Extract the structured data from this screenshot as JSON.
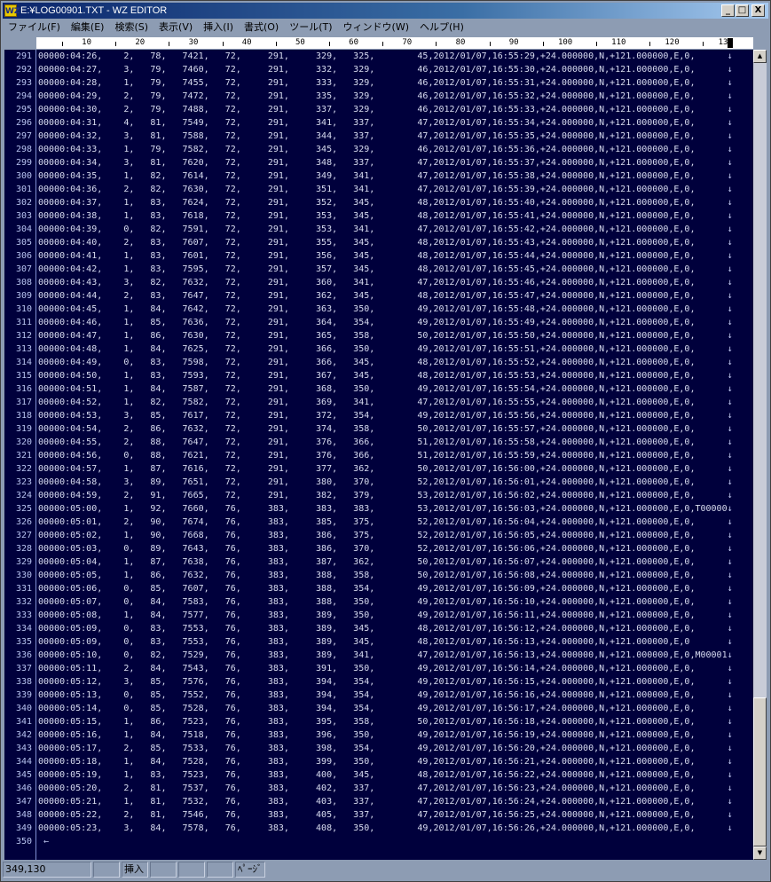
{
  "window": {
    "title": "E:¥LOG00901.TXT - WZ EDITOR",
    "app_icon": "WZ",
    "buttons": {
      "minimize": "_",
      "maximize": "□",
      "close": "X"
    }
  },
  "menu": [
    "ファイル(F)",
    "編集(E)",
    "検索(S)",
    "表示(V)",
    "挿入(I)",
    "書式(O)",
    "ツール(T)",
    "ウィンドウ(W)",
    "ヘルプ(H)"
  ],
  "ruler": {
    "labels": [
      "10",
      "20",
      "30",
      "40",
      "50",
      "60",
      "70",
      "80",
      "90",
      "100",
      "110",
      "120",
      "130"
    ],
    "cursor_column": 130
  },
  "editor": {
    "eol_marker": "↓",
    "eof_marker": "←",
    "lines": [
      {
        "n": "291",
        "f": [
          "00000:04:26,",
          "2,",
          "78,",
          "7421,",
          "72,",
          "291,",
          "329,",
          "325,",
          "45,2012/01/07,16:55:29,+24.000000,N,+121.000000,E,0,"
        ]
      },
      {
        "n": "292",
        "f": [
          "00000:04:27,",
          "3,",
          "79,",
          "7460,",
          "72,",
          "291,",
          "332,",
          "329,",
          "46,2012/01/07,16:55:30,+24.000000,N,+121.000000,E,0,"
        ]
      },
      {
        "n": "293",
        "f": [
          "00000:04:28,",
          "1,",
          "79,",
          "7455,",
          "72,",
          "291,",
          "333,",
          "329,",
          "46,2012/01/07,16:55:31,+24.000000,N,+121.000000,E,0,"
        ]
      },
      {
        "n": "294",
        "f": [
          "00000:04:29,",
          "2,",
          "79,",
          "7472,",
          "72,",
          "291,",
          "335,",
          "329,",
          "46,2012/01/07,16:55:32,+24.000000,N,+121.000000,E,0,"
        ]
      },
      {
        "n": "295",
        "f": [
          "00000:04:30,",
          "2,",
          "79,",
          "7488,",
          "72,",
          "291,",
          "337,",
          "329,",
          "46,2012/01/07,16:55:33,+24.000000,N,+121.000000,E,0,"
        ]
      },
      {
        "n": "296",
        "f": [
          "00000:04:31,",
          "4,",
          "81,",
          "7549,",
          "72,",
          "291,",
          "341,",
          "337,",
          "47,2012/01/07,16:55:34,+24.000000,N,+121.000000,E,0,"
        ]
      },
      {
        "n": "297",
        "f": [
          "00000:04:32,",
          "3,",
          "81,",
          "7588,",
          "72,",
          "291,",
          "344,",
          "337,",
          "47,2012/01/07,16:55:35,+24.000000,N,+121.000000,E,0,"
        ]
      },
      {
        "n": "298",
        "f": [
          "00000:04:33,",
          "1,",
          "79,",
          "7582,",
          "72,",
          "291,",
          "345,",
          "329,",
          "46,2012/01/07,16:55:36,+24.000000,N,+121.000000,E,0,"
        ]
      },
      {
        "n": "299",
        "f": [
          "00000:04:34,",
          "3,",
          "81,",
          "7620,",
          "72,",
          "291,",
          "348,",
          "337,",
          "47,2012/01/07,16:55:37,+24.000000,N,+121.000000,E,0,"
        ]
      },
      {
        "n": "300",
        "f": [
          "00000:04:35,",
          "1,",
          "82,",
          "7614,",
          "72,",
          "291,",
          "349,",
          "341,",
          "47,2012/01/07,16:55:38,+24.000000,N,+121.000000,E,0,"
        ]
      },
      {
        "n": "301",
        "f": [
          "00000:04:36,",
          "2,",
          "82,",
          "7630,",
          "72,",
          "291,",
          "351,",
          "341,",
          "47,2012/01/07,16:55:39,+24.000000,N,+121.000000,E,0,"
        ]
      },
      {
        "n": "302",
        "f": [
          "00000:04:37,",
          "1,",
          "83,",
          "7624,",
          "72,",
          "291,",
          "352,",
          "345,",
          "48,2012/01/07,16:55:40,+24.000000,N,+121.000000,E,0,"
        ]
      },
      {
        "n": "303",
        "f": [
          "00000:04:38,",
          "1,",
          "83,",
          "7618,",
          "72,",
          "291,",
          "353,",
          "345,",
          "48,2012/01/07,16:55:41,+24.000000,N,+121.000000,E,0,"
        ]
      },
      {
        "n": "304",
        "f": [
          "00000:04:39,",
          "0,",
          "82,",
          "7591,",
          "72,",
          "291,",
          "353,",
          "341,",
          "47,2012/01/07,16:55:42,+24.000000,N,+121.000000,E,0,"
        ]
      },
      {
        "n": "305",
        "f": [
          "00000:04:40,",
          "2,",
          "83,",
          "7607,",
          "72,",
          "291,",
          "355,",
          "345,",
          "48,2012/01/07,16:55:43,+24.000000,N,+121.000000,E,0,"
        ]
      },
      {
        "n": "306",
        "f": [
          "00000:04:41,",
          "1,",
          "83,",
          "7601,",
          "72,",
          "291,",
          "356,",
          "345,",
          "48,2012/01/07,16:55:44,+24.000000,N,+121.000000,E,0,"
        ]
      },
      {
        "n": "307",
        "f": [
          "00000:04:42,",
          "1,",
          "83,",
          "7595,",
          "72,",
          "291,",
          "357,",
          "345,",
          "48,2012/01/07,16:55:45,+24.000000,N,+121.000000,E,0,"
        ]
      },
      {
        "n": "308",
        "f": [
          "00000:04:43,",
          "3,",
          "82,",
          "7632,",
          "72,",
          "291,",
          "360,",
          "341,",
          "47,2012/01/07,16:55:46,+24.000000,N,+121.000000,E,0,"
        ]
      },
      {
        "n": "309",
        "f": [
          "00000:04:44,",
          "2,",
          "83,",
          "7647,",
          "72,",
          "291,",
          "362,",
          "345,",
          "48,2012/01/07,16:55:47,+24.000000,N,+121.000000,E,0,"
        ]
      },
      {
        "n": "310",
        "f": [
          "00000:04:45,",
          "1,",
          "84,",
          "7642,",
          "72,",
          "291,",
          "363,",
          "350,",
          "49,2012/01/07,16:55:48,+24.000000,N,+121.000000,E,0,"
        ]
      },
      {
        "n": "311",
        "f": [
          "00000:04:46,",
          "1,",
          "85,",
          "7636,",
          "72,",
          "291,",
          "364,",
          "354,",
          "49,2012/01/07,16:55:49,+24.000000,N,+121.000000,E,0,"
        ]
      },
      {
        "n": "312",
        "f": [
          "00000:04:47,",
          "1,",
          "86,",
          "7630,",
          "72,",
          "291,",
          "365,",
          "358,",
          "50,2012/01/07,16:55:50,+24.000000,N,+121.000000,E,0,"
        ]
      },
      {
        "n": "313",
        "f": [
          "00000:04:48,",
          "1,",
          "84,",
          "7625,",
          "72,",
          "291,",
          "366,",
          "350,",
          "49,2012/01/07,16:55:51,+24.000000,N,+121.000000,E,0,"
        ]
      },
      {
        "n": "314",
        "f": [
          "00000:04:49,",
          "0,",
          "83,",
          "7598,",
          "72,",
          "291,",
          "366,",
          "345,",
          "48,2012/01/07,16:55:52,+24.000000,N,+121.000000,E,0,"
        ]
      },
      {
        "n": "315",
        "f": [
          "00000:04:50,",
          "1,",
          "83,",
          "7593,",
          "72,",
          "291,",
          "367,",
          "345,",
          "48,2012/01/07,16:55:53,+24.000000,N,+121.000000,E,0,"
        ]
      },
      {
        "n": "316",
        "f": [
          "00000:04:51,",
          "1,",
          "84,",
          "7587,",
          "72,",
          "291,",
          "368,",
          "350,",
          "49,2012/01/07,16:55:54,+24.000000,N,+121.000000,E,0,"
        ]
      },
      {
        "n": "317",
        "f": [
          "00000:04:52,",
          "1,",
          "82,",
          "7582,",
          "72,",
          "291,",
          "369,",
          "341,",
          "47,2012/01/07,16:55:55,+24.000000,N,+121.000000,E,0,"
        ]
      },
      {
        "n": "318",
        "f": [
          "00000:04:53,",
          "3,",
          "85,",
          "7617,",
          "72,",
          "291,",
          "372,",
          "354,",
          "49,2012/01/07,16:55:56,+24.000000,N,+121.000000,E,0,"
        ]
      },
      {
        "n": "319",
        "f": [
          "00000:04:54,",
          "2,",
          "86,",
          "7632,",
          "72,",
          "291,",
          "374,",
          "358,",
          "50,2012/01/07,16:55:57,+24.000000,N,+121.000000,E,0,"
        ]
      },
      {
        "n": "320",
        "f": [
          "00000:04:55,",
          "2,",
          "88,",
          "7647,",
          "72,",
          "291,",
          "376,",
          "366,",
          "51,2012/01/07,16:55:58,+24.000000,N,+121.000000,E,0,"
        ]
      },
      {
        "n": "321",
        "f": [
          "00000:04:56,",
          "0,",
          "88,",
          "7621,",
          "72,",
          "291,",
          "376,",
          "366,",
          "51,2012/01/07,16:55:59,+24.000000,N,+121.000000,E,0,"
        ]
      },
      {
        "n": "322",
        "f": [
          "00000:04:57,",
          "1,",
          "87,",
          "7616,",
          "72,",
          "291,",
          "377,",
          "362,",
          "50,2012/01/07,16:56:00,+24.000000,N,+121.000000,E,0,"
        ]
      },
      {
        "n": "323",
        "f": [
          "00000:04:58,",
          "3,",
          "89,",
          "7651,",
          "72,",
          "291,",
          "380,",
          "370,",
          "52,2012/01/07,16:56:01,+24.000000,N,+121.000000,E,0,"
        ]
      },
      {
        "n": "324",
        "f": [
          "00000:04:59,",
          "2,",
          "91,",
          "7665,",
          "72,",
          "291,",
          "382,",
          "379,",
          "53,2012/01/07,16:56:02,+24.000000,N,+121.000000,E,0,"
        ]
      },
      {
        "n": "325",
        "f": [
          "00000:05:00,",
          "1,",
          "92,",
          "7660,",
          "76,",
          "383,",
          "383,",
          "383,",
          "53,2012/01/07,16:56:03,+24.000000,N,+121.000000,E,0,T00000"
        ]
      },
      {
        "n": "326",
        "f": [
          "00000:05:01,",
          "2,",
          "90,",
          "7674,",
          "76,",
          "383,",
          "385,",
          "375,",
          "52,2012/01/07,16:56:04,+24.000000,N,+121.000000,E,0,"
        ]
      },
      {
        "n": "327",
        "f": [
          "00000:05:02,",
          "1,",
          "90,",
          "7668,",
          "76,",
          "383,",
          "386,",
          "375,",
          "52,2012/01/07,16:56:05,+24.000000,N,+121.000000,E,0,"
        ]
      },
      {
        "n": "328",
        "f": [
          "00000:05:03,",
          "0,",
          "89,",
          "7643,",
          "76,",
          "383,",
          "386,",
          "370,",
          "52,2012/01/07,16:56:06,+24.000000,N,+121.000000,E,0,"
        ]
      },
      {
        "n": "329",
        "f": [
          "00000:05:04,",
          "1,",
          "87,",
          "7638,",
          "76,",
          "383,",
          "387,",
          "362,",
          "50,2012/01/07,16:56:07,+24.000000,N,+121.000000,E,0,"
        ]
      },
      {
        "n": "330",
        "f": [
          "00000:05:05,",
          "1,",
          "86,",
          "7632,",
          "76,",
          "383,",
          "388,",
          "358,",
          "50,2012/01/07,16:56:08,+24.000000,N,+121.000000,E,0,"
        ]
      },
      {
        "n": "331",
        "f": [
          "00000:05:06,",
          "0,",
          "85,",
          "7607,",
          "76,",
          "383,",
          "388,",
          "354,",
          "49,2012/01/07,16:56:09,+24.000000,N,+121.000000,E,0,"
        ]
      },
      {
        "n": "332",
        "f": [
          "00000:05:07,",
          "0,",
          "84,",
          "7583,",
          "76,",
          "383,",
          "388,",
          "350,",
          "49,2012/01/07,16:56:10,+24.000000,N,+121.000000,E,0,"
        ]
      },
      {
        "n": "333",
        "f": [
          "00000:05:08,",
          "1,",
          "84,",
          "7577,",
          "76,",
          "383,",
          "389,",
          "350,",
          "49,2012/01/07,16:56:11,+24.000000,N,+121.000000,E,0,"
        ]
      },
      {
        "n": "334",
        "f": [
          "00000:05:09,",
          "0,",
          "83,",
          "7553,",
          "76,",
          "383,",
          "389,",
          "345,",
          "48,2012/01/07,16:56:12,+24.000000,N,+121.000000,E,0,"
        ]
      },
      {
        "n": "335",
        "f": [
          "00000:05:09,",
          "0,",
          "83,",
          "7553,",
          "76,",
          "383,",
          "389,",
          "345,",
          "48,2012/01/07,16:56:13,+24.000000,N,+121.000000,E,0"
        ]
      },
      {
        "n": "336",
        "f": [
          "00000:05:10,",
          "0,",
          "82,",
          "7529,",
          "76,",
          "383,",
          "389,",
          "341,",
          "47,2012/01/07,16:56:13,+24.000000,N,+121.000000,E,0,M00001"
        ]
      },
      {
        "n": "337",
        "f": [
          "00000:05:11,",
          "2,",
          "84,",
          "7543,",
          "76,",
          "383,",
          "391,",
          "350,",
          "49,2012/01/07,16:56:14,+24.000000,N,+121.000000,E,0,"
        ]
      },
      {
        "n": "338",
        "f": [
          "00000:05:12,",
          "3,",
          "85,",
          "7576,",
          "76,",
          "383,",
          "394,",
          "354,",
          "49,2012/01/07,16:56:15,+24.000000,N,+121.000000,E,0,"
        ]
      },
      {
        "n": "339",
        "f": [
          "00000:05:13,",
          "0,",
          "85,",
          "7552,",
          "76,",
          "383,",
          "394,",
          "354,",
          "49,2012/01/07,16:56:16,+24.000000,N,+121.000000,E,0,"
        ]
      },
      {
        "n": "340",
        "f": [
          "00000:05:14,",
          "0,",
          "85,",
          "7528,",
          "76,",
          "383,",
          "394,",
          "354,",
          "49,2012/01/07,16:56:17,+24.000000,N,+121.000000,E,0,"
        ]
      },
      {
        "n": "341",
        "f": [
          "00000:05:15,",
          "1,",
          "86,",
          "7523,",
          "76,",
          "383,",
          "395,",
          "358,",
          "50,2012/01/07,16:56:18,+24.000000,N,+121.000000,E,0,"
        ]
      },
      {
        "n": "342",
        "f": [
          "00000:05:16,",
          "1,",
          "84,",
          "7518,",
          "76,",
          "383,",
          "396,",
          "350,",
          "49,2012/01/07,16:56:19,+24.000000,N,+121.000000,E,0,"
        ]
      },
      {
        "n": "343",
        "f": [
          "00000:05:17,",
          "2,",
          "85,",
          "7533,",
          "76,",
          "383,",
          "398,",
          "354,",
          "49,2012/01/07,16:56:20,+24.000000,N,+121.000000,E,0,"
        ]
      },
      {
        "n": "344",
        "f": [
          "00000:05:18,",
          "1,",
          "84,",
          "7528,",
          "76,",
          "383,",
          "399,",
          "350,",
          "49,2012/01/07,16:56:21,+24.000000,N,+121.000000,E,0,"
        ]
      },
      {
        "n": "345",
        "f": [
          "00000:05:19,",
          "1,",
          "83,",
          "7523,",
          "76,",
          "383,",
          "400,",
          "345,",
          "48,2012/01/07,16:56:22,+24.000000,N,+121.000000,E,0,"
        ]
      },
      {
        "n": "346",
        "f": [
          "00000:05:20,",
          "2,",
          "81,",
          "7537,",
          "76,",
          "383,",
          "402,",
          "337,",
          "47,2012/01/07,16:56:23,+24.000000,N,+121.000000,E,0,"
        ]
      },
      {
        "n": "347",
        "f": [
          "00000:05:21,",
          "1,",
          "81,",
          "7532,",
          "76,",
          "383,",
          "403,",
          "337,",
          "47,2012/01/07,16:56:24,+24.000000,N,+121.000000,E,0,"
        ]
      },
      {
        "n": "348",
        "f": [
          "00000:05:22,",
          "2,",
          "81,",
          "7546,",
          "76,",
          "383,",
          "405,",
          "337,",
          "47,2012/01/07,16:56:25,+24.000000,N,+121.000000,E,0,"
        ]
      },
      {
        "n": "349",
        "f": [
          "00000:05:23,",
          "3,",
          "84,",
          "7578,",
          "76,",
          "383,",
          "408,",
          "350,",
          "49,2012/01/07,16:56:26,+24.000000,N,+121.000000,E,0,"
        ]
      },
      {
        "n": "350",
        "f": []
      }
    ]
  },
  "scrollbar": {
    "up": "▲",
    "down": "▼",
    "position_fraction": 0.8
  },
  "status": {
    "cursor": "349,130",
    "mode": "挿入",
    "page": "ﾍﾟｰｼﾞ"
  }
}
